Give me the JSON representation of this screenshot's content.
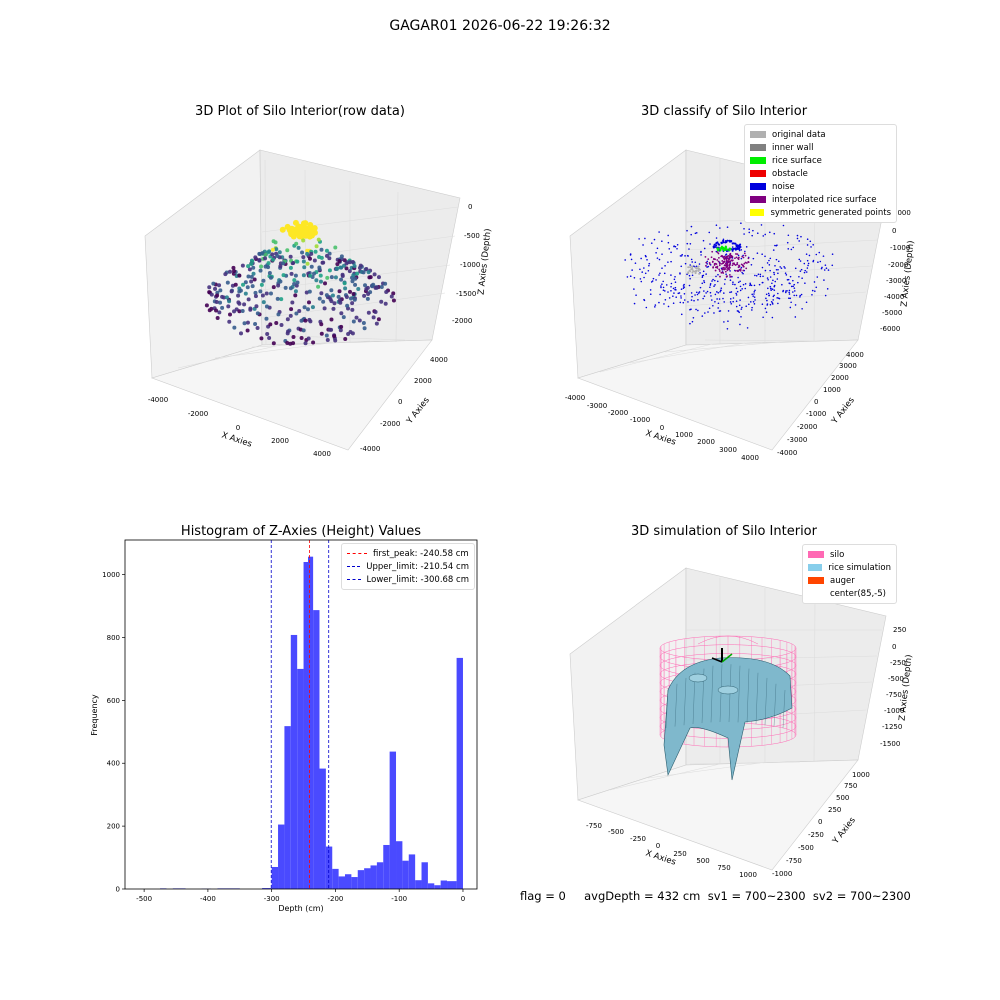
{
  "window_title": "GAGAR01 2026-06-22 19:26:32",
  "footer": "flag = 0     avgDepth = 432 cm  sv1 = 700~2300  sv2 = 700~2300",
  "colors": {
    "hist_bar": "#4a4aff",
    "peak_line": "#ff0000",
    "limit_line": "#0000cc"
  },
  "chart_data": [
    {
      "type": "scatter",
      "title": "3D Plot of Silo Interior(row data)",
      "xlabel": "X Axies",
      "ylabel": "Y Axies",
      "zlabel": "Z Axies (Depth)",
      "x_ticks": [
        "-4000",
        "-2000",
        "0",
        "2000",
        "4000"
      ],
      "y_ticks": [
        "-4000",
        "-2000",
        "0",
        "2000",
        "4000"
      ],
      "z_ticks": [
        "0",
        "-500",
        "-1000",
        "-1500",
        "-2000"
      ],
      "colormap": "viridis"
    },
    {
      "type": "scatter",
      "title": "3D classify of Silo Interior",
      "xlabel": "X Axies",
      "ylabel": "Y Axies",
      "zlabel": "Z Axies (Depth)",
      "x_ticks": [
        "-4000",
        "-3000",
        "-2000",
        "-1000",
        "0",
        "1000",
        "2000",
        "3000",
        "4000"
      ],
      "y_ticks": [
        "-4000",
        "-3000",
        "-2000",
        "-1000",
        "0",
        "1000",
        "2000",
        "3000",
        "4000"
      ],
      "z_ticks": [
        "1000",
        "0",
        "-1000",
        "-2000",
        "-3000",
        "-4000",
        "-5000",
        "-6000"
      ],
      "legend": [
        {
          "label": "original data",
          "color": "#b0b0b0"
        },
        {
          "label": "inner wall",
          "color": "#808080"
        },
        {
          "label": "rice surface",
          "color": "#00ee00"
        },
        {
          "label": "obstacle",
          "color": "#ee0000"
        },
        {
          "label": "noise",
          "color": "#0000dd"
        },
        {
          "label": "interpolated rice surface",
          "color": "#800080"
        },
        {
          "label": "symmetric generated points",
          "color": "#ffff00"
        }
      ]
    },
    {
      "type": "bar",
      "title": "Histogram of Z-Axies (Height) Values",
      "xlabel": "Depth (cm)",
      "ylabel": "Frequency",
      "xlim": [
        -530,
        22
      ],
      "ylim": [
        0,
        1110
      ],
      "x_ticks": [
        -500,
        -400,
        -300,
        -200,
        -100,
        0
      ],
      "y_ticks": [
        0,
        200,
        400,
        600,
        800,
        1000
      ],
      "bin_start": -500,
      "bin_width": 10,
      "bins": [
        {
          "x0": -475,
          "x1": -465,
          "v": 2
        },
        {
          "x0": -455,
          "x1": -435,
          "v": 2
        },
        {
          "x0": -410,
          "x1": -395,
          "v": 1
        },
        {
          "x0": -385,
          "x1": -350,
          "v": 2
        },
        {
          "x0": -315,
          "x1": -300,
          "v": 3
        },
        {
          "x0": -300,
          "x1": -290,
          "v": 70
        },
        {
          "x0": -290,
          "x1": -280,
          "v": 205
        },
        {
          "x0": -280,
          "x1": -270,
          "v": 518
        },
        {
          "x0": -270,
          "x1": -260,
          "v": 808
        },
        {
          "x0": -260,
          "x1": -250,
          "v": 700
        },
        {
          "x0": -250,
          "x1": -243,
          "v": 1040
        },
        {
          "x0": -243,
          "x1": -235,
          "v": 1057
        },
        {
          "x0": -235,
          "x1": -225,
          "v": 887
        },
        {
          "x0": -225,
          "x1": -215,
          "v": 383
        },
        {
          "x0": -215,
          "x1": -205,
          "v": 135
        },
        {
          "x0": -205,
          "x1": -195,
          "v": 64
        },
        {
          "x0": -195,
          "x1": -185,
          "v": 40
        },
        {
          "x0": -185,
          "x1": -175,
          "v": 47
        },
        {
          "x0": -175,
          "x1": -165,
          "v": 38
        },
        {
          "x0": -165,
          "x1": -155,
          "v": 60
        },
        {
          "x0": -155,
          "x1": -145,
          "v": 66
        },
        {
          "x0": -145,
          "x1": -135,
          "v": 75
        },
        {
          "x0": -135,
          "x1": -125,
          "v": 85
        },
        {
          "x0": -125,
          "x1": -115,
          "v": 140
        },
        {
          "x0": -115,
          "x1": -105,
          "v": 437
        },
        {
          "x0": -105,
          "x1": -95,
          "v": 152
        },
        {
          "x0": -95,
          "x1": -85,
          "v": 90
        },
        {
          "x0": -85,
          "x1": -75,
          "v": 110
        },
        {
          "x0": -75,
          "x1": -65,
          "v": 28
        },
        {
          "x0": -65,
          "x1": -55,
          "v": 85
        },
        {
          "x0": -55,
          "x1": -45,
          "v": 18
        },
        {
          "x0": -45,
          "x1": -35,
          "v": 12
        },
        {
          "x0": -35,
          "x1": -25,
          "v": 27
        },
        {
          "x0": -25,
          "x1": -10,
          "v": 25
        },
        {
          "x0": -10,
          "x1": 0,
          "v": 735
        }
      ],
      "vlines": [
        {
          "x": -240.58,
          "label": "first_peak: -240.58 cm",
          "color": "#ff0000"
        },
        {
          "x": -210.54,
          "label": "Upper_limit: -210.54 cm",
          "color": "#0000cc"
        },
        {
          "x": -300.68,
          "label": "Lower_limit: -300.68 cm",
          "color": "#0000cc"
        }
      ]
    },
    {
      "type": "surface",
      "title": "3D simulation of Silo Interior",
      "xlabel": "X Axies",
      "ylabel": "Y Axies",
      "zlabel": "Z Axies (Depth)",
      "x_ticks": [
        "-750",
        "-500",
        "-250",
        "0",
        "250",
        "500",
        "750",
        "1000"
      ],
      "y_ticks": [
        "-1000",
        "-750",
        "-500",
        "-250",
        "0",
        "250",
        "500",
        "750",
        "1000"
      ],
      "z_ticks": [
        "250",
        "0",
        "-250",
        "-500",
        "-750",
        "-1000",
        "-1250",
        "-1500"
      ],
      "legend": [
        {
          "label": "silo",
          "color": "#ff69b4"
        },
        {
          "label": "rice simulation",
          "color": "#87ceeb"
        },
        {
          "label": "auger",
          "color": "#ff4500"
        },
        {
          "label": "center(85,-5)",
          "color": "#ffffff"
        }
      ]
    }
  ]
}
